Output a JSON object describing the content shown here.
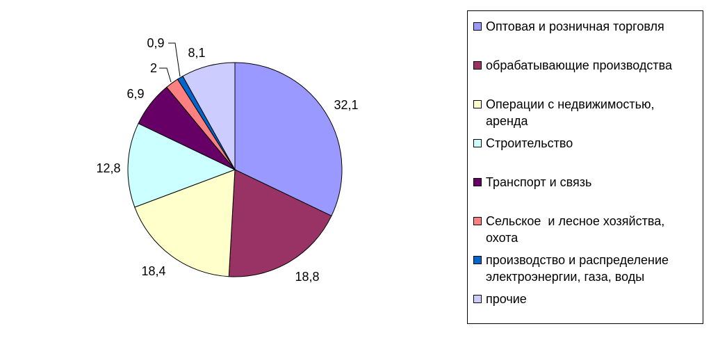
{
  "chart_data": {
    "type": "pie",
    "start": "top",
    "direction": "clockwise",
    "legend_position": "right",
    "categories": [
      "Оптовая и розничная торговля",
      "обрабатывающие производства",
      "Операции с недвижимостью, аренда",
      "Строительство",
      "Транспорт и связь",
      "Сельское  и лесное хозяйства, охота",
      "производство и распределение электроэнергии, газа, воды",
      "прочие"
    ],
    "values": [
      32.1,
      18.8,
      18.4,
      12.8,
      6.9,
      2,
      0.9,
      8.1
    ],
    "data_labels": [
      "32,1",
      "18,8",
      "18,4",
      "12,8",
      "6,9",
      "2",
      "0,9",
      "8,1"
    ],
    "colors": [
      "#9999FF",
      "#993366",
      "#FFFFCC",
      "#CCFFFF",
      "#660066",
      "#FF8080",
      "#0066CC",
      "#CCCCFF"
    ]
  },
  "legend": {
    "items": [
      {
        "lines": [
          "Оптовая и розничная торговля"
        ]
      },
      {
        "lines": [
          "обрабатывающие производства"
        ]
      },
      {
        "lines": [
          "Операции с недвижимостью,",
          "аренда"
        ]
      },
      {
        "lines": [
          "Строительство"
        ]
      },
      {
        "lines": [
          "Транспорт и связь"
        ]
      },
      {
        "lines": [
          "Сельское  и лесное хозяйства,",
          "охота"
        ]
      },
      {
        "lines": [
          "производство и распределение",
          "электроэнергии, газа, воды"
        ]
      },
      {
        "lines": [
          "прочие"
        ]
      }
    ]
  }
}
